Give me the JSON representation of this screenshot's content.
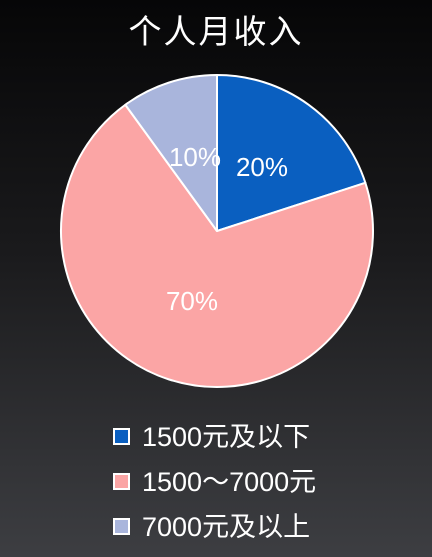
{
  "chart_data": {
    "type": "pie",
    "title": "个人月收入",
    "slices": [
      {
        "name": "1500元及以下",
        "value": 20,
        "label": "20%",
        "color": "#0a5fc0"
      },
      {
        "name": "1500～7000元",
        "value": 70,
        "label": "70%",
        "color": "#fba5a5"
      },
      {
        "name": "7000元及以上",
        "value": 10,
        "label": "10%",
        "color": "#a9b5dc"
      }
    ],
    "legend_position": "bottom",
    "start_angle_deg": 0,
    "direction": "clockwise"
  }
}
